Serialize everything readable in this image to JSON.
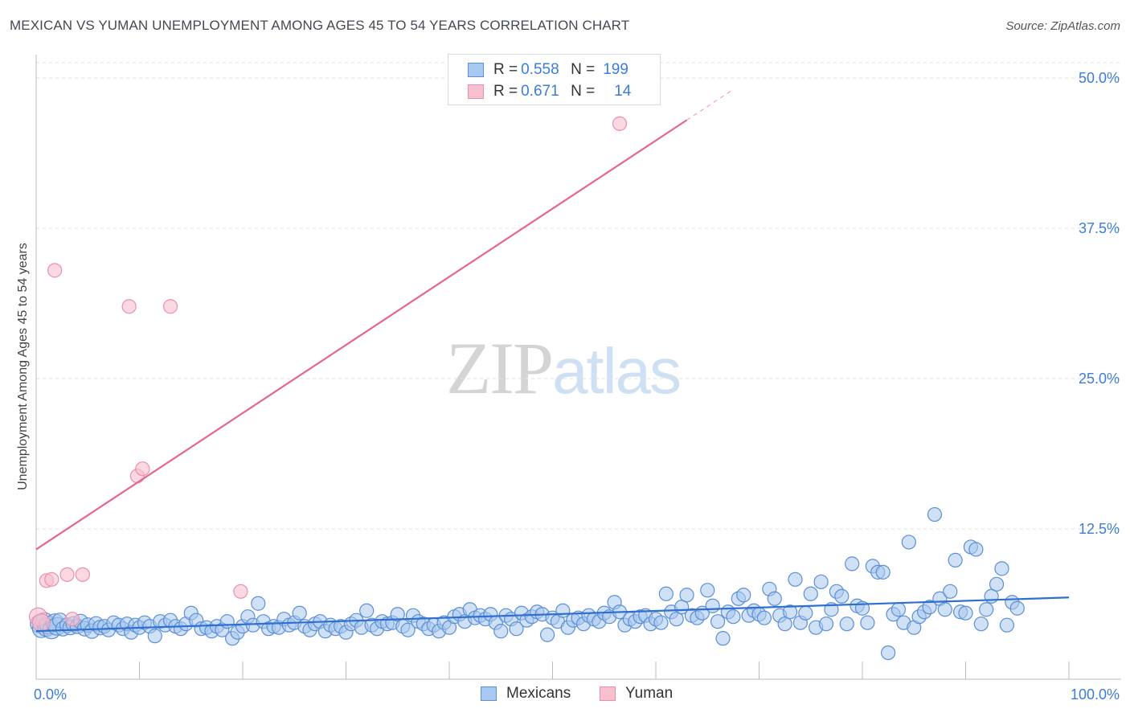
{
  "title": "MEXICAN VS YUMAN UNEMPLOYMENT AMONG AGES 45 TO 54 YEARS CORRELATION CHART",
  "source": "Source: ZipAtlas.com",
  "watermark": {
    "zip": "ZIP",
    "atlas": "atlas"
  },
  "legend": {
    "r_label": "R =",
    "n_label": "N =",
    "mexicans": {
      "r": "0.558",
      "n": "199"
    },
    "yuman": {
      "r": "0.671",
      "n": "14"
    }
  },
  "colors": {
    "blue_fill": "#a9c8ef",
    "blue_stroke": "#5b8fd6",
    "blue_line": "#2f6fd0",
    "pink_fill": "#f8c0cf",
    "pink_stroke": "#ec8ea9",
    "pink_line": "#e8648e",
    "tick_color": "#3b7dd8",
    "grid": "#e0e0e0"
  },
  "chart_data": {
    "type": "scatter",
    "title": "MEXICAN VS YUMAN UNEMPLOYMENT AMONG AGES 45 TO 54 YEARS CORRELATION CHART",
    "xlabel": "",
    "ylabel": "Unemployment Among Ages 45 to 54 years",
    "xlim": [
      0,
      100
    ],
    "ylim": [
      0,
      50
    ],
    "x_ticks": [
      "0.0%",
      "100.0%"
    ],
    "y_ticks": [
      {
        "value": 12.5,
        "label": "12.5%"
      },
      {
        "value": 25.0,
        "label": "25.0%"
      },
      {
        "value": 37.5,
        "label": "37.5%"
      },
      {
        "value": 50.0,
        "label": "50.0%"
      }
    ],
    "legend_position": "bottom",
    "series": [
      {
        "name": "Mexicans",
        "color": "#5b8fd6",
        "trend": {
          "x": [
            0,
            100
          ],
          "y": [
            4.0,
            6.8
          ]
        },
        "points": [
          [
            0.3,
            4.6
          ],
          [
            0.5,
            4.2
          ],
          [
            0.8,
            4.8
          ],
          [
            1.0,
            4.3
          ],
          [
            1.2,
            4.5
          ],
          [
            1.5,
            4.1
          ],
          [
            1.8,
            4.7
          ],
          [
            2.0,
            4.4
          ],
          [
            2.3,
            4.9
          ],
          [
            2.6,
            4.2
          ],
          [
            3.0,
            4.5
          ],
          [
            3.3,
            4.3
          ],
          [
            3.6,
            4.6
          ],
          [
            4.0,
            4.4
          ],
          [
            4.3,
            4.8
          ],
          [
            4.7,
            4.2
          ],
          [
            5.0,
            4.5
          ],
          [
            5.4,
            4.0
          ],
          [
            5.8,
            4.6
          ],
          [
            6.2,
            4.3
          ],
          [
            6.6,
            4.4
          ],
          [
            7.0,
            4.1
          ],
          [
            7.5,
            4.7
          ],
          [
            8.0,
            4.5
          ],
          [
            8.4,
            4.2
          ],
          [
            8.8,
            4.6
          ],
          [
            9.2,
            3.9
          ],
          [
            9.6,
            4.5
          ],
          [
            10.0,
            4.3
          ],
          [
            10.5,
            4.7
          ],
          [
            11.0,
            4.4
          ],
          [
            11.5,
            3.6
          ],
          [
            12.0,
            4.8
          ],
          [
            12.5,
            4.5
          ],
          [
            13.0,
            4.9
          ],
          [
            13.5,
            4.4
          ],
          [
            14.0,
            4.2
          ],
          [
            14.5,
            4.6
          ],
          [
            15.0,
            5.5
          ],
          [
            15.5,
            4.9
          ],
          [
            16.0,
            4.2
          ],
          [
            16.5,
            4.3
          ],
          [
            17.0,
            4.0
          ],
          [
            17.5,
            4.4
          ],
          [
            18.0,
            4.1
          ],
          [
            18.5,
            4.8
          ],
          [
            19.0,
            3.4
          ],
          [
            19.5,
            3.9
          ],
          [
            20.0,
            4.4
          ],
          [
            20.5,
            5.2
          ],
          [
            21.0,
            4.5
          ],
          [
            21.5,
            6.3
          ],
          [
            22.0,
            4.8
          ],
          [
            22.5,
            4.2
          ],
          [
            23.0,
            4.4
          ],
          [
            23.5,
            4.3
          ],
          [
            24.0,
            5.0
          ],
          [
            24.5,
            4.5
          ],
          [
            25.0,
            4.7
          ],
          [
            25.5,
            5.5
          ],
          [
            26.0,
            4.4
          ],
          [
            26.5,
            4.1
          ],
          [
            27.0,
            4.6
          ],
          [
            27.5,
            4.8
          ],
          [
            28.0,
            4.0
          ],
          [
            28.5,
            4.5
          ],
          [
            29.0,
            4.2
          ],
          [
            29.5,
            4.4
          ],
          [
            30.0,
            3.9
          ],
          [
            30.5,
            4.6
          ],
          [
            31.0,
            4.9
          ],
          [
            31.5,
            4.3
          ],
          [
            32.0,
            5.7
          ],
          [
            32.5,
            4.5
          ],
          [
            33.0,
            4.2
          ],
          [
            33.5,
            4.8
          ],
          [
            34.0,
            4.6
          ],
          [
            34.5,
            4.7
          ],
          [
            35.0,
            5.4
          ],
          [
            35.5,
            4.4
          ],
          [
            36.0,
            4.1
          ],
          [
            36.5,
            5.3
          ],
          [
            37.0,
            4.8
          ],
          [
            37.5,
            4.6
          ],
          [
            38.0,
            4.2
          ],
          [
            38.5,
            4.5
          ],
          [
            39.0,
            4.0
          ],
          [
            39.5,
            4.7
          ],
          [
            40.0,
            4.3
          ],
          [
            40.5,
            5.2
          ],
          [
            41.0,
            5.4
          ],
          [
            41.5,
            4.8
          ],
          [
            42.0,
            5.8
          ],
          [
            42.5,
            5.1
          ],
          [
            43.0,
            5.3
          ],
          [
            43.5,
            5.0
          ],
          [
            44.0,
            5.4
          ],
          [
            44.5,
            4.7
          ],
          [
            45.0,
            4.0
          ],
          [
            45.5,
            5.3
          ],
          [
            46.0,
            5.0
          ],
          [
            46.5,
            4.2
          ],
          [
            47.0,
            5.5
          ],
          [
            47.5,
            4.9
          ],
          [
            48.0,
            5.2
          ],
          [
            48.5,
            5.6
          ],
          [
            49.0,
            5.4
          ],
          [
            49.5,
            3.7
          ],
          [
            50.0,
            5.1
          ],
          [
            50.5,
            4.8
          ],
          [
            51.0,
            5.7
          ],
          [
            51.5,
            4.3
          ],
          [
            52.0,
            4.9
          ],
          [
            52.5,
            5.1
          ],
          [
            53.0,
            4.6
          ],
          [
            53.5,
            5.3
          ],
          [
            54.0,
            5.0
          ],
          [
            54.5,
            4.8
          ],
          [
            55.0,
            5.5
          ],
          [
            55.5,
            5.2
          ],
          [
            56.0,
            6.4
          ],
          [
            56.5,
            5.6
          ],
          [
            57.0,
            4.5
          ],
          [
            57.5,
            5.0
          ],
          [
            58.0,
            4.8
          ],
          [
            58.5,
            5.2
          ],
          [
            59.0,
            5.3
          ],
          [
            59.5,
            4.6
          ],
          [
            60.0,
            5.0
          ],
          [
            60.5,
            4.7
          ],
          [
            61.0,
            7.1
          ],
          [
            61.5,
            5.6
          ],
          [
            62.0,
            5.0
          ],
          [
            62.5,
            6.0
          ],
          [
            63.0,
            7.0
          ],
          [
            63.5,
            5.3
          ],
          [
            64.0,
            5.1
          ],
          [
            64.5,
            5.5
          ],
          [
            65.0,
            7.4
          ],
          [
            65.5,
            6.1
          ],
          [
            66.0,
            4.8
          ],
          [
            66.5,
            3.4
          ],
          [
            67.0,
            5.6
          ],
          [
            67.5,
            5.2
          ],
          [
            68.0,
            6.7
          ],
          [
            68.5,
            7.0
          ],
          [
            69.0,
            5.3
          ],
          [
            69.5,
            5.7
          ],
          [
            70.0,
            5.4
          ],
          [
            70.5,
            5.1
          ],
          [
            71.0,
            7.5
          ],
          [
            71.5,
            6.7
          ],
          [
            72.0,
            5.3
          ],
          [
            72.5,
            4.6
          ],
          [
            73.0,
            5.6
          ],
          [
            73.5,
            8.3
          ],
          [
            74.0,
            4.7
          ],
          [
            74.5,
            5.5
          ],
          [
            75.0,
            7.1
          ],
          [
            75.5,
            4.3
          ],
          [
            76.0,
            8.1
          ],
          [
            76.5,
            4.6
          ],
          [
            77.0,
            5.8
          ],
          [
            77.5,
            7.3
          ],
          [
            78.0,
            6.9
          ],
          [
            78.5,
            4.6
          ],
          [
            79.0,
            9.6
          ],
          [
            79.5,
            6.1
          ],
          [
            80.0,
            5.9
          ],
          [
            80.5,
            4.7
          ],
          [
            81.0,
            9.4
          ],
          [
            81.5,
            8.9
          ],
          [
            82.0,
            8.9
          ],
          [
            82.5,
            2.2
          ],
          [
            83.0,
            5.4
          ],
          [
            83.5,
            5.8
          ],
          [
            84.0,
            4.7
          ],
          [
            84.5,
            11.4
          ],
          [
            85.0,
            4.3
          ],
          [
            85.5,
            5.2
          ],
          [
            86.0,
            5.6
          ],
          [
            86.5,
            6.0
          ],
          [
            87.0,
            13.7
          ],
          [
            87.5,
            6.7
          ],
          [
            88.0,
            5.8
          ],
          [
            88.5,
            7.3
          ],
          [
            89.0,
            9.9
          ],
          [
            89.5,
            5.6
          ],
          [
            90.0,
            5.5
          ],
          [
            90.5,
            11.0
          ],
          [
            91.0,
            10.8
          ],
          [
            91.5,
            4.6
          ],
          [
            92.0,
            5.8
          ],
          [
            92.5,
            6.9
          ],
          [
            93.0,
            7.9
          ],
          [
            93.5,
            9.2
          ],
          [
            94.0,
            4.5
          ],
          [
            94.5,
            6.4
          ],
          [
            95.0,
            5.9
          ]
        ]
      },
      {
        "name": "Yuman",
        "color": "#ec8ea9",
        "trend": {
          "x": [
            0,
            63
          ],
          "y": [
            10.8,
            46.5
          ]
        },
        "points": [
          [
            0.2,
            5.2
          ],
          [
            0.5,
            4.7
          ],
          [
            1.0,
            8.2
          ],
          [
            1.5,
            8.3
          ],
          [
            1.8,
            34.0
          ],
          [
            3.0,
            8.7
          ],
          [
            3.5,
            5.0
          ],
          [
            4.5,
            8.7
          ],
          [
            9.0,
            31.0
          ],
          [
            9.8,
            16.9
          ],
          [
            10.3,
            17.5
          ],
          [
            13.0,
            31.0
          ],
          [
            19.8,
            7.3
          ],
          [
            56.5,
            46.2
          ]
        ]
      }
    ]
  },
  "bottom_legend": {
    "mexicans": "Mexicans",
    "yuman": "Yuman"
  }
}
